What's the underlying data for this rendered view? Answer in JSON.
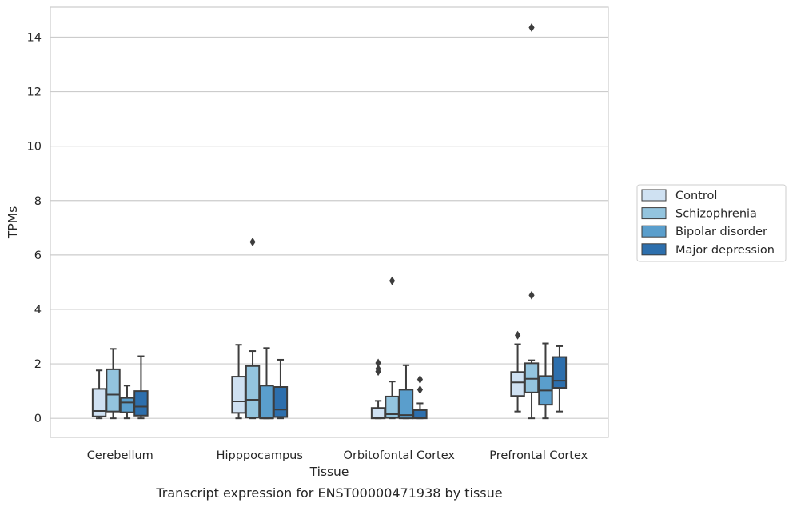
{
  "chart_data": {
    "type": "box",
    "xlabel": "Tissue",
    "ylabel": "TPMs",
    "caption": "Transcript expression for ENST00000471938 by tissue",
    "ylim": [
      -0.7,
      15.1
    ],
    "yticks": [
      "0",
      "2",
      "4",
      "6",
      "8",
      "10",
      "12",
      "14"
    ],
    "grid": "horizontal",
    "legend_position": "right",
    "categories": [
      "Cerebellum",
      "Hipppocampus",
      "Orbitofontal Cortex",
      "Prefrontal Cortex"
    ],
    "series": [
      {
        "name": "Control",
        "color": "#cfe1f2",
        "boxes": [
          {
            "whislo": 0.0,
            "q1": 0.07,
            "med": 0.27,
            "q3": 1.08,
            "whishi": 1.76,
            "fliers": []
          },
          {
            "whislo": 0.0,
            "q1": 0.2,
            "med": 0.62,
            "q3": 1.53,
            "whishi": 2.7,
            "fliers": []
          },
          {
            "whislo": 0.0,
            "q1": 0.0,
            "med": 0.02,
            "q3": 0.38,
            "whishi": 0.64,
            "fliers": [
              1.72,
              1.82,
              2.03
            ]
          },
          {
            "whislo": 0.25,
            "q1": 0.82,
            "med": 1.32,
            "q3": 1.7,
            "whishi": 2.72,
            "fliers": [
              3.05
            ]
          }
        ]
      },
      {
        "name": "Schizophrenia",
        "color": "#93c4de",
        "boxes": [
          {
            "whislo": 0.0,
            "q1": 0.25,
            "med": 0.87,
            "q3": 1.8,
            "whishi": 2.55,
            "fliers": []
          },
          {
            "whislo": 0.0,
            "q1": 0.03,
            "med": 0.68,
            "q3": 1.92,
            "whishi": 2.47,
            "fliers": [
              6.48
            ]
          },
          {
            "whislo": 0.0,
            "q1": 0.02,
            "med": 0.15,
            "q3": 0.8,
            "whishi": 1.35,
            "fliers": [
              5.05
            ]
          },
          {
            "whislo": 0.0,
            "q1": 0.95,
            "med": 1.45,
            "q3": 2.02,
            "whishi": 2.13,
            "fliers": [
              4.52,
              14.35
            ]
          }
        ]
      },
      {
        "name": "Bipolar disorder",
        "color": "#5a9ecc",
        "boxes": [
          {
            "whislo": 0.0,
            "q1": 0.22,
            "med": 0.58,
            "q3": 0.75,
            "whishi": 1.2,
            "fliers": []
          },
          {
            "whislo": 0.0,
            "q1": 0.0,
            "med": 0.0,
            "q3": 1.2,
            "whishi": 2.58,
            "fliers": []
          },
          {
            "whislo": 0.0,
            "q1": 0.0,
            "med": 0.12,
            "q3": 1.05,
            "whishi": 1.95,
            "fliers": []
          },
          {
            "whislo": 0.0,
            "q1": 0.5,
            "med": 1.02,
            "q3": 1.55,
            "whishi": 2.75,
            "fliers": []
          }
        ]
      },
      {
        "name": "Major depression",
        "color": "#2d6fad",
        "boxes": [
          {
            "whislo": 0.0,
            "q1": 0.1,
            "med": 0.43,
            "q3": 1.0,
            "whishi": 2.28,
            "fliers": []
          },
          {
            "whislo": 0.0,
            "q1": 0.05,
            "med": 0.32,
            "q3": 1.15,
            "whishi": 2.15,
            "fliers": []
          },
          {
            "whislo": 0.0,
            "q1": 0.0,
            "med": 0.02,
            "q3": 0.3,
            "whishi": 0.55,
            "fliers": [
              1.05,
              1.43
            ]
          },
          {
            "whislo": 0.25,
            "q1": 1.12,
            "med": 1.38,
            "q3": 2.25,
            "whishi": 2.65,
            "fliers": []
          }
        ]
      }
    ]
  }
}
